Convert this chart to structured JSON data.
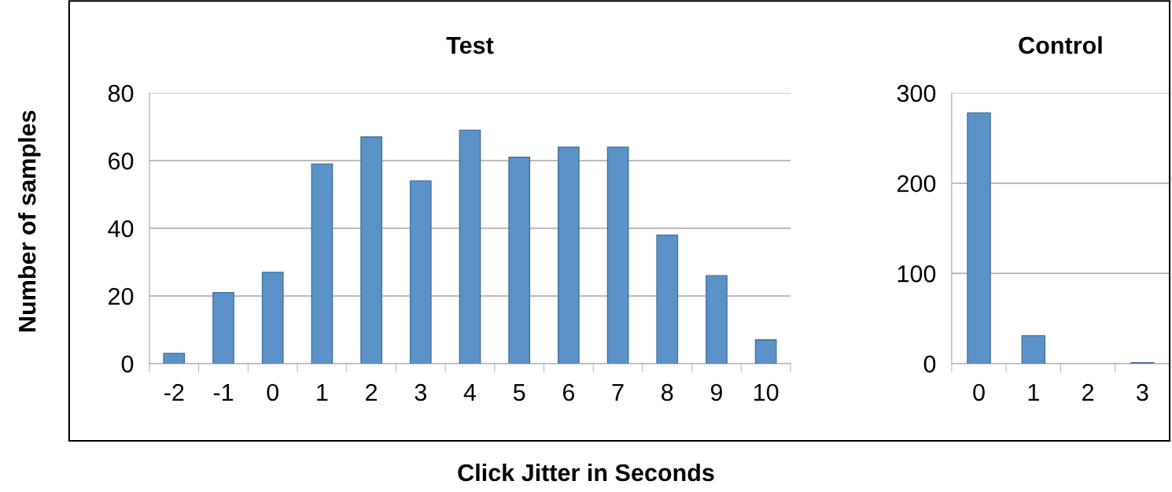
{
  "chart_data": [
    {
      "type": "bar",
      "title": "Test",
      "xlabel": "Click Jitter in Seconds",
      "ylabel": "Number of samples",
      "categories": [
        "-2",
        "-1",
        "0",
        "1",
        "2",
        "3",
        "4",
        "5",
        "6",
        "7",
        "8",
        "9",
        "10"
      ],
      "values": [
        3,
        21,
        27,
        59,
        67,
        54,
        69,
        61,
        64,
        64,
        38,
        26,
        7
      ],
      "color": "#5b93c9",
      "ylim": [
        0,
        80
      ],
      "yticks": [
        0,
        20,
        40,
        60,
        80
      ],
      "grid": "y"
    },
    {
      "type": "bar",
      "title": "Control",
      "categories": [
        "0",
        "1",
        "2",
        "3"
      ],
      "values": [
        278,
        31,
        0,
        1
      ],
      "color": "#5b93c9",
      "ylim": [
        0,
        300
      ],
      "yticks": [
        0,
        100,
        200,
        300
      ],
      "grid": "y"
    }
  ]
}
